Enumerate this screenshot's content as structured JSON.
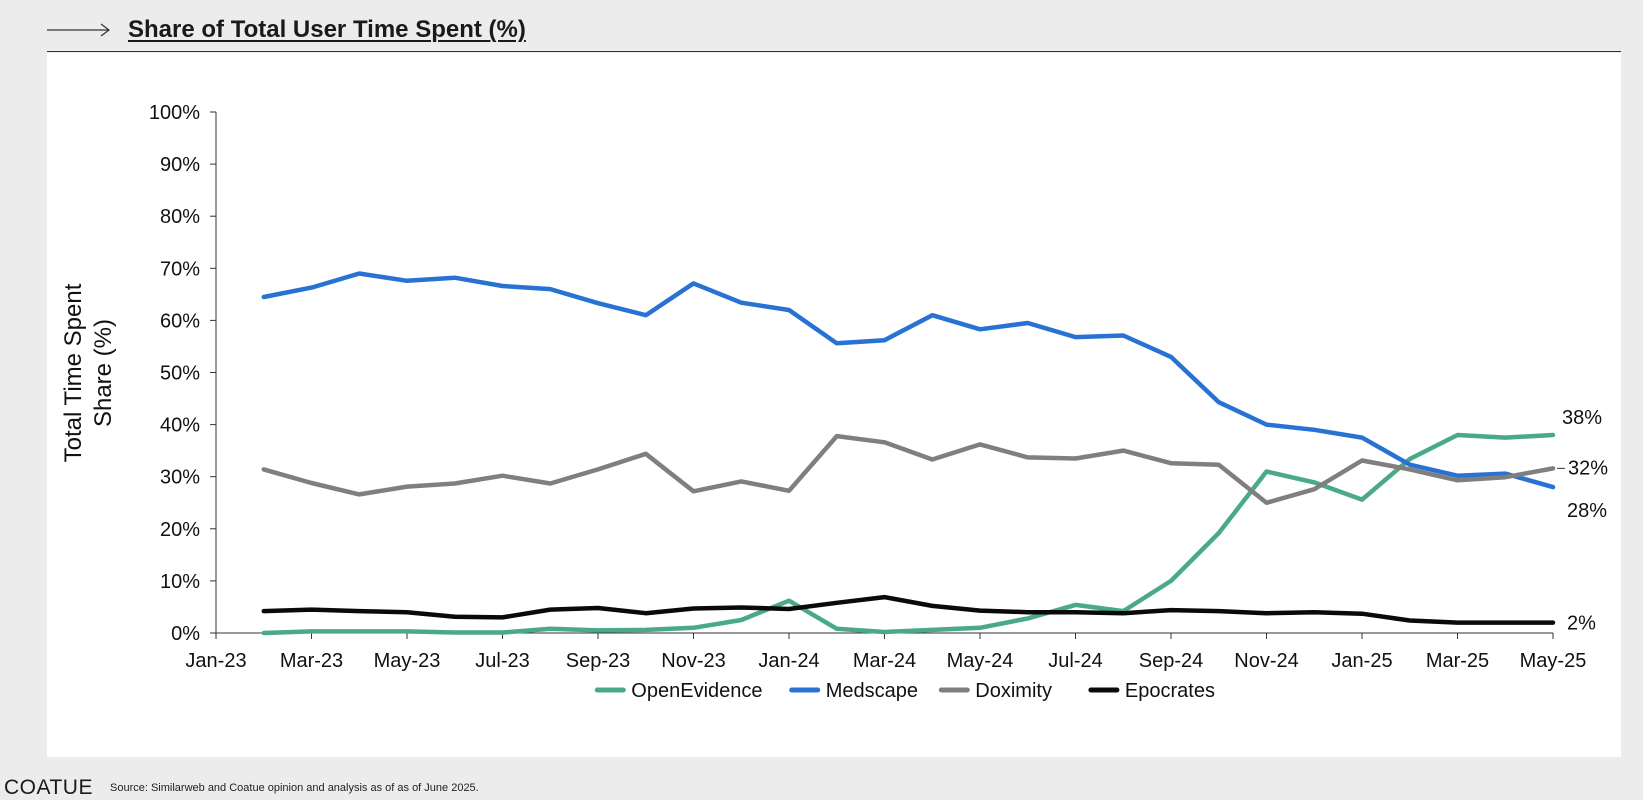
{
  "header": {
    "title": "Share of Total User Time Spent (%)"
  },
  "footer": {
    "brand": "COATUE",
    "source": "Source: Similarweb and Coatue opinion and analysis as of as of June 2025."
  },
  "chart_data": {
    "type": "line",
    "title": "Share of Total User Time Spent (%)",
    "ylabel": "Total Time Spent Share (%)",
    "ylabel_lines": [
      "Total Time Spent",
      "Share (%)"
    ],
    "xlabel": "",
    "ylim": [
      0,
      100
    ],
    "y_ticks": [
      0,
      10,
      20,
      30,
      40,
      50,
      60,
      70,
      80,
      90,
      100
    ],
    "y_tick_labels": [
      "0%",
      "10%",
      "20%",
      "30%",
      "40%",
      "50%",
      "60%",
      "70%",
      "80%",
      "90%",
      "100%"
    ],
    "x_tick_labels": [
      "Jan-23",
      "Mar-23",
      "May-23",
      "Jul-23",
      "Sep-23",
      "Nov-23",
      "Jan-24",
      "Mar-24",
      "May-24",
      "Jul-24",
      "Sep-24",
      "Nov-24",
      "Jan-25",
      "Mar-25",
      "May-25"
    ],
    "x": [
      "Feb-23",
      "Mar-23",
      "Apr-23",
      "May-23",
      "Jun-23",
      "Jul-23",
      "Aug-23",
      "Sep-23",
      "Oct-23",
      "Nov-23",
      "Dec-23",
      "Jan-24",
      "Feb-24",
      "Mar-24",
      "Apr-24",
      "May-24",
      "Jun-24",
      "Jul-24",
      "Aug-24",
      "Sep-24",
      "Oct-24",
      "Nov-24",
      "Dec-24",
      "Jan-25",
      "Feb-25",
      "Mar-25",
      "Apr-25",
      "May-25"
    ],
    "grid": false,
    "legend_position": "bottom",
    "series": [
      {
        "name": "OpenEvidence",
        "color": "#4aaa86",
        "values": [
          0.0,
          0.3,
          0.3,
          0.3,
          0.1,
          0.1,
          0.8,
          0.5,
          0.6,
          1.0,
          2.5,
          6.2,
          0.8,
          0.2,
          0.6,
          1.0,
          2.8,
          5.4,
          4.2,
          10.0,
          19.2,
          31.0,
          28.9,
          25.6,
          33.4,
          38.0,
          37.5,
          38.0
        ],
        "end_label": "38%"
      },
      {
        "name": "Medscape",
        "color": "#2872d4",
        "values": [
          64.5,
          66.3,
          69.0,
          67.6,
          68.2,
          66.6,
          66.0,
          63.3,
          61.0,
          67.1,
          63.4,
          62.0,
          55.6,
          56.2,
          61.0,
          58.3,
          59.5,
          56.8,
          57.1,
          53.0,
          44.3,
          40.0,
          39.0,
          37.5,
          32.3,
          30.2,
          30.6,
          28.0
        ],
        "end_label": "28%"
      },
      {
        "name": "Doximity",
        "color": "#7f7f7f",
        "values": [
          31.4,
          28.8,
          26.6,
          28.1,
          28.7,
          30.2,
          28.7,
          31.4,
          34.4,
          27.2,
          29.1,
          27.3,
          37.8,
          36.6,
          33.3,
          36.2,
          33.7,
          33.5,
          35.0,
          32.6,
          32.3,
          25.0,
          27.6,
          33.1,
          31.4,
          29.3,
          29.9,
          31.6
        ],
        "end_label": "32%"
      },
      {
        "name": "Epocrates",
        "color": "#0a0a0a",
        "values": [
          4.2,
          4.5,
          4.2,
          4.0,
          3.1,
          3.0,
          4.5,
          4.8,
          3.8,
          4.7,
          4.9,
          4.6,
          5.8,
          6.9,
          5.2,
          4.3,
          4.0,
          4.0,
          3.8,
          4.4,
          4.2,
          3.8,
          4.0,
          3.7,
          2.4,
          2.0,
          2.0,
          2.0
        ],
        "end_label": "2%"
      }
    ]
  }
}
